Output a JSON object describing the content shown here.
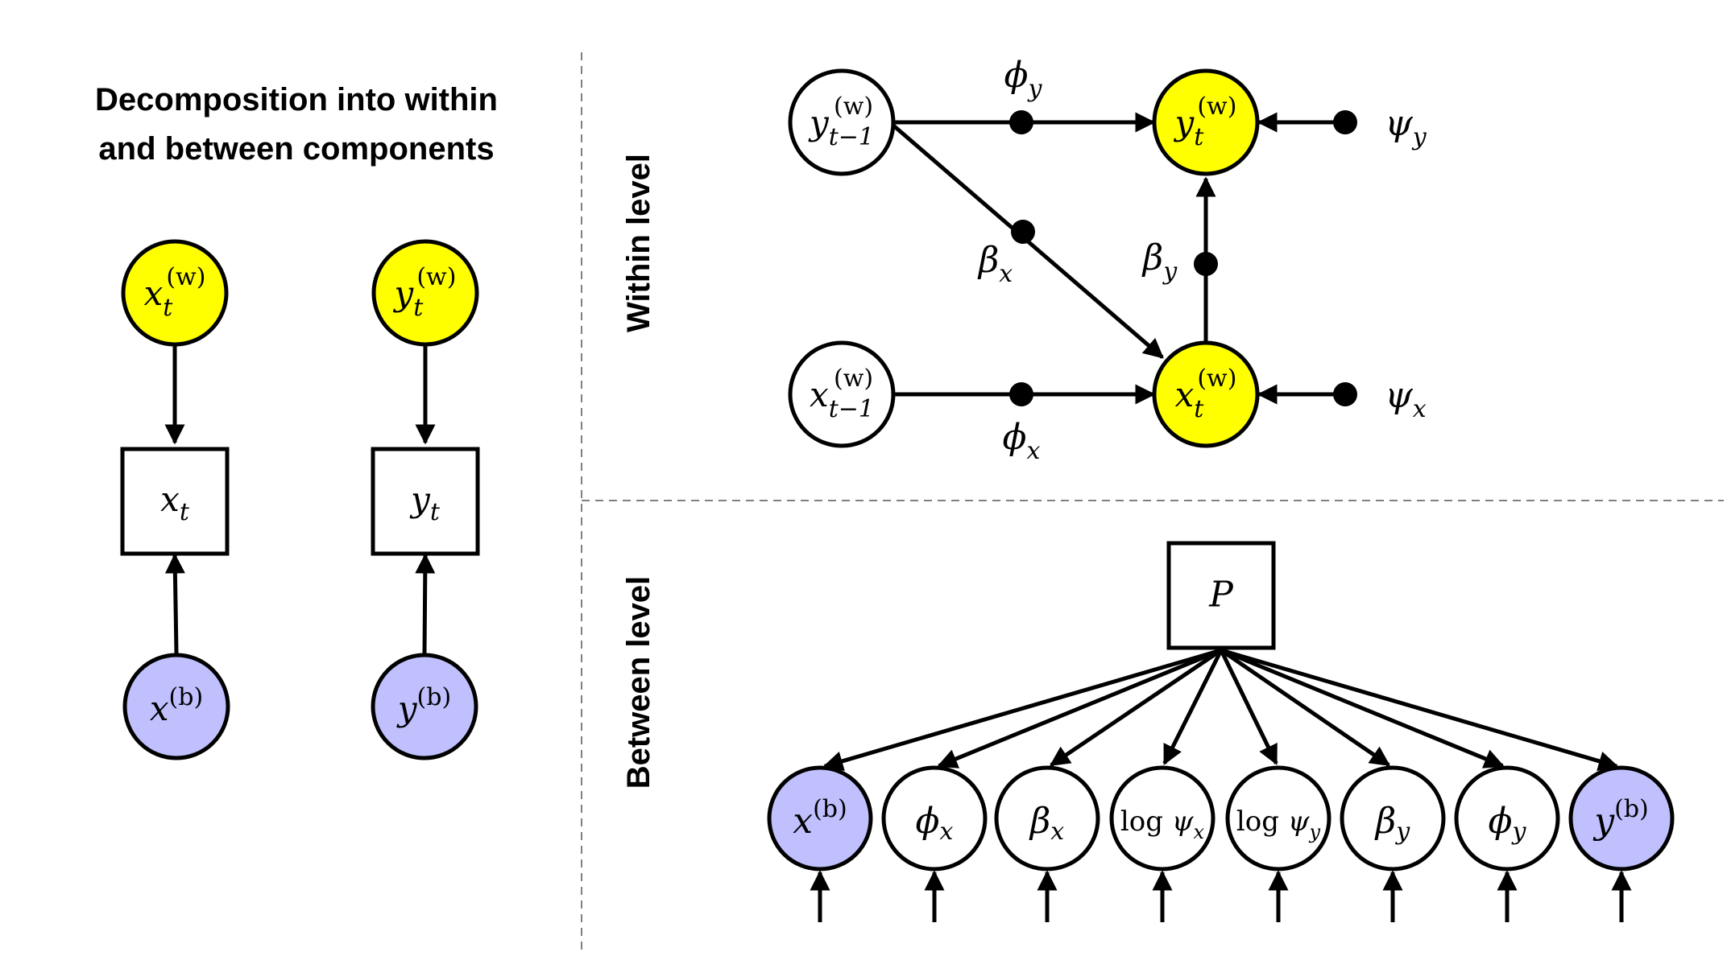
{
  "title": {
    "line1": "Decomposition into within",
    "line2": "and between components"
  },
  "section_labels": {
    "within": "Within level",
    "between": "Between level"
  },
  "colors": {
    "within_node": "#ffff00",
    "between_node": "#c0c0ff",
    "plain_node": "#ffffff",
    "stroke": "#000000",
    "divider": "#808080"
  },
  "decomposition": {
    "x_within": {
      "base": "x",
      "sub": "t",
      "sup": "(w)"
    },
    "y_within": {
      "base": "y",
      "sub": "t",
      "sup": "(w)"
    },
    "x_obs": {
      "base": "x",
      "sub": "t"
    },
    "y_obs": {
      "base": "y",
      "sub": "t"
    },
    "x_between": {
      "base": "x",
      "sup": "(b)"
    },
    "y_between": {
      "base": "y",
      "sup": "(b)"
    }
  },
  "within_model": {
    "y_lag": {
      "base": "y",
      "sub": "t−1",
      "sup": "(w)"
    },
    "x_lag": {
      "base": "x",
      "sub": "t−1",
      "sup": "(w)"
    },
    "y_cur": {
      "base": "y",
      "sub": "t",
      "sup": "(w)"
    },
    "x_cur": {
      "base": "x",
      "sub": "t",
      "sup": "(w)"
    },
    "phi_y": {
      "base": "ϕ",
      "sub": "y"
    },
    "phi_x": {
      "base": "ϕ",
      "sub": "x"
    },
    "beta_x": {
      "base": "β",
      "sub": "x"
    },
    "beta_y": {
      "base": "β",
      "sub": "y"
    },
    "psi_y": {
      "base": "ψ",
      "sub": "y"
    },
    "psi_x": {
      "base": "ψ",
      "sub": "x"
    }
  },
  "between_model": {
    "predictor": "P",
    "nodes": [
      {
        "prefix": "",
        "base": "x",
        "sub": "",
        "sup": "(b)",
        "fill": "#c0c0ff"
      },
      {
        "prefix": "",
        "base": "ϕ",
        "sub": "x",
        "sup": "",
        "fill": "#ffffff"
      },
      {
        "prefix": "",
        "base": "β",
        "sub": "x",
        "sup": "",
        "fill": "#ffffff"
      },
      {
        "prefix": "log ",
        "base": "ψ",
        "sub": "x",
        "sup": "",
        "fill": "#ffffff"
      },
      {
        "prefix": "log ",
        "base": "ψ",
        "sub": "y",
        "sup": "",
        "fill": "#ffffff"
      },
      {
        "prefix": "",
        "base": "β",
        "sub": "y",
        "sup": "",
        "fill": "#ffffff"
      },
      {
        "prefix": "",
        "base": "ϕ",
        "sub": "y",
        "sup": "",
        "fill": "#ffffff"
      },
      {
        "prefix": "",
        "base": "y",
        "sub": "",
        "sup": "(b)",
        "fill": "#c0c0ff"
      }
    ]
  }
}
